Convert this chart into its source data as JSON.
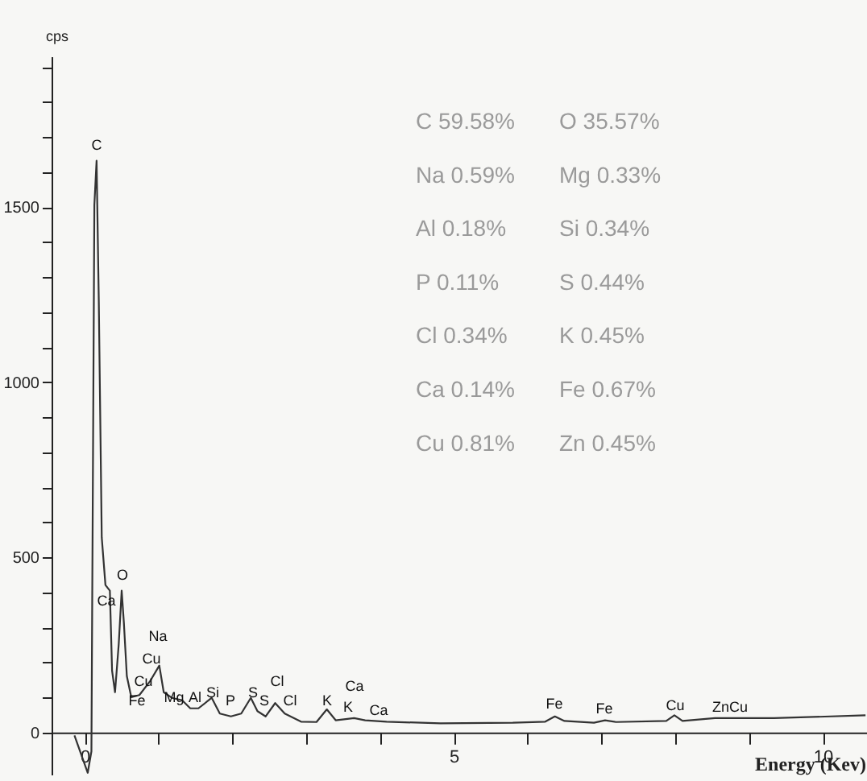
{
  "chart_data": {
    "type": "line",
    "xlabel": "Energy (Kev)",
    "ylabel": "cps",
    "xlim": [
      -0.45,
      10.6
    ],
    "ylim": [
      -120,
      1930
    ],
    "xticks": [
      0,
      {
        "value": 1,
        "label": null
      },
      {
        "value": 2,
        "label": null
      },
      {
        "value": 3,
        "label": null
      },
      {
        "value": 4,
        "label": null
      },
      5,
      {
        "value": 6,
        "label": null
      },
      {
        "value": 7,
        "label": null
      },
      {
        "value": 8,
        "label": null
      },
      {
        "value": 9,
        "label": null
      },
      10
    ],
    "yticks": [
      0,
      {
        "value": 100,
        "label": null
      },
      {
        "value": 200,
        "label": null
      },
      {
        "value": 300,
        "label": null
      },
      {
        "value": 400,
        "label": null
      },
      500,
      {
        "value": 600,
        "label": null
      },
      {
        "value": 700,
        "label": null
      },
      {
        "value": 800,
        "label": null
      },
      {
        "value": 900,
        "label": null
      },
      1000,
      {
        "value": 1100,
        "label": null
      },
      {
        "value": 1200,
        "label": null
      },
      {
        "value": 1300,
        "label": null
      },
      {
        "value": 1400,
        "label": null
      },
      1500,
      {
        "value": 1600,
        "label": null
      },
      {
        "value": 1700,
        "label": null
      },
      {
        "value": 1800,
        "label": null
      },
      {
        "value": 1900,
        "label": null
      }
    ],
    "x": [
      -0.14,
      0.04,
      0.09,
      0.13,
      0.16,
      0.19,
      0.23,
      0.28,
      0.34,
      0.37,
      0.41,
      0.46,
      0.5,
      0.53,
      0.57,
      0.63,
      0.74,
      0.88,
      1.01,
      1.07,
      1.18,
      1.32,
      1.43,
      1.54,
      1.72,
      1.83,
      1.98,
      2.12,
      2.25,
      2.34,
      2.45,
      2.58,
      2.71,
      2.93,
      3.14,
      3.28,
      3.4,
      3.65,
      3.8,
      4.09,
      4.82,
      5.8,
      6.24,
      6.37,
      6.5,
      6.9,
      7.05,
      7.2,
      7.88,
      7.99,
      8.1,
      8.54,
      9.34,
      10.58
    ],
    "series": [
      {
        "color": "#333333",
        "values": [
          -8,
          -115,
          -54,
          1506,
          1632,
          1231,
          557,
          421,
          405,
          176,
          115,
          252,
          405,
          313,
          161,
          101,
          107,
          145,
          191,
          115,
          99,
          92,
          69,
          69,
          99,
          54,
          46,
          54,
          99,
          61,
          46,
          84,
          54,
          31,
          30,
          66,
          35,
          41,
          35,
          31,
          26,
          28,
          31,
          46,
          33,
          28,
          35,
          30,
          33,
          49,
          33,
          41,
          41,
          49
        ]
      }
    ],
    "grid": false,
    "marker": "none",
    "line_style": "solid",
    "annotations": [
      "C",
      "O",
      "Ca",
      "Na",
      "Cu",
      "Cu",
      "Fe",
      "Mg",
      "Al",
      "Si",
      "P",
      "S",
      "S",
      "Cl",
      "Cl",
      "K",
      "K",
      "Ca",
      "Ca",
      "Fe",
      "Fe",
      "Cu",
      "ZnCu",
      "C  59.58%",
      "O  35.57%",
      "Na  0.59%",
      "Mg  0.33%",
      "Al  0.18%",
      "Si  0.34%",
      "P  0.11%",
      "S  0.44%",
      "Cl  0.34%",
      "K  0.45%",
      "Ca  0.14%",
      "Fe  0.67%",
      "Cu  0.81%",
      "Zn  0.45%"
    ]
  }
}
